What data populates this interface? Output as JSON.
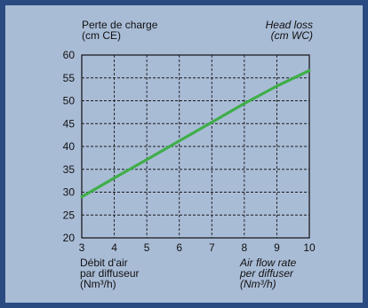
{
  "chart_data": {
    "type": "line",
    "x": [
      3,
      4,
      5,
      6,
      7,
      8,
      9,
      10
    ],
    "series": [
      {
        "values": [
          29,
          33.1,
          37.1,
          41.2,
          45.3,
          49.4,
          53.2,
          56.6
        ]
      }
    ],
    "xlim": [
      3,
      10
    ],
    "ylim": [
      20,
      60
    ],
    "x_ticks": [
      "3",
      "4",
      "5",
      "6",
      "7",
      "8",
      "9",
      "10"
    ],
    "y_ticks": [
      "20",
      "25",
      "30",
      "35",
      "40",
      "45",
      "50",
      "55",
      "60"
    ],
    "grid": true,
    "line_color": "#3fae49",
    "ylabel_fr": [
      "Perte de charge",
      "(cm CE)"
    ],
    "ylabel_en": [
      "Head loss",
      "(cm WC)"
    ],
    "xlabel_fr": [
      "Débit d'air",
      "par diffuseur",
      "(Nm³/h)"
    ],
    "xlabel_en": [
      "Air flow rate",
      "per diffuser",
      "(Nm³/h)"
    ]
  }
}
